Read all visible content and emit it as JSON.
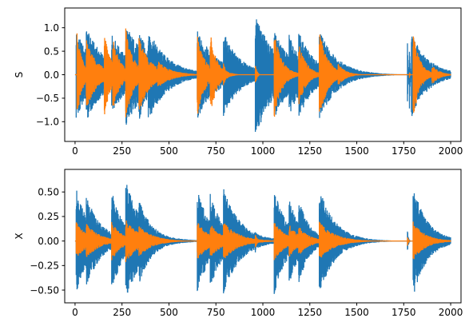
{
  "chart_data": [
    {
      "type": "line",
      "ylabel": "S",
      "xlabel": "",
      "title": "",
      "xlim": [
        -55,
        2055
      ],
      "ylim": [
        -1.42,
        1.42
      ],
      "xticks": [
        0,
        250,
        500,
        750,
        1000,
        1250,
        1500,
        1750,
        2000
      ],
      "yticks": [
        -1.0,
        -0.5,
        0.0,
        0.5,
        1.0
      ],
      "ytick_labels": [
        "−1.0",
        "−0.5",
        "0.0",
        "0.5",
        "1.0"
      ],
      "grid": false,
      "series": [
        {
          "color": "#1f77b4",
          "envelope_events": [
            {
              "start": 5,
              "amplitude": 0.95,
              "decay": 95
            },
            {
              "start": 60,
              "amplitude": 1.0,
              "decay": 110
            },
            {
              "start": 195,
              "amplitude": 0.9,
              "decay": 95
            },
            {
              "start": 270,
              "amplitude": 1.1,
              "decay": 120
            },
            {
              "start": 340,
              "amplitude": 1.0,
              "decay": 70
            },
            {
              "start": 390,
              "amplitude": 0.98,
              "decay": 105
            },
            {
              "start": 650,
              "amplitude": 0.95,
              "decay": 110
            },
            {
              "start": 790,
              "amplitude": 0.92,
              "decay": 90
            },
            {
              "start": 960,
              "amplitude": 1.35,
              "decay": 105
            },
            {
              "start": 1060,
              "amplitude": 0.95,
              "decay": 95
            },
            {
              "start": 1140,
              "amplitude": 0.88,
              "decay": 80
            },
            {
              "start": 1190,
              "amplitude": 0.95,
              "decay": 85
            },
            {
              "start": 1300,
              "amplitude": 0.98,
              "decay": 95
            },
            {
              "start": 1770,
              "amplitude": 0.92,
              "decay": 3
            },
            {
              "start": 1780,
              "amplitude": 0.92,
              "decay": 3
            },
            {
              "start": 1790,
              "amplitude": 0.92,
              "decay": 90
            }
          ]
        },
        {
          "color": "#ff7f0e",
          "envelope_events": [
            {
              "start": 10,
              "amplitude": 0.95,
              "decay": 28
            },
            {
              "start": 60,
              "amplitude": 0.75,
              "decay": 60
            },
            {
              "start": 155,
              "amplitude": 0.95,
              "decay": 35
            },
            {
              "start": 200,
              "amplitude": 0.82,
              "decay": 40
            },
            {
              "start": 270,
              "amplitude": 1.02,
              "decay": 40
            },
            {
              "start": 340,
              "amplitude": 0.82,
              "decay": 60
            },
            {
              "start": 440,
              "amplitude": 0.3,
              "decay": 70
            },
            {
              "start": 650,
              "amplitude": 0.95,
              "decay": 40
            },
            {
              "start": 720,
              "amplitude": 0.92,
              "decay": 35
            },
            {
              "start": 790,
              "amplitude": 0.25,
              "decay": 18
            },
            {
              "start": 960,
              "amplitude": 0.25,
              "decay": 8
            },
            {
              "start": 1060,
              "amplitude": 0.95,
              "decay": 40
            },
            {
              "start": 1190,
              "amplitude": 0.72,
              "decay": 40
            },
            {
              "start": 1300,
              "amplitude": 0.98,
              "decay": 45
            },
            {
              "start": 1400,
              "amplitude": 0.25,
              "decay": 40
            },
            {
              "start": 1780,
              "amplitude": 0.08,
              "decay": 3
            },
            {
              "start": 1800,
              "amplitude": 0.95,
              "decay": 35
            },
            {
              "start": 1900,
              "amplitude": 0.22,
              "decay": 40
            }
          ]
        }
      ]
    },
    {
      "type": "line",
      "ylabel": "X",
      "xlabel": "",
      "title": "",
      "xlim": [
        -55,
        2055
      ],
      "ylim": [
        -0.63,
        0.73
      ],
      "xticks": [
        0,
        250,
        500,
        750,
        1000,
        1250,
        1500,
        1750,
        2000
      ],
      "yticks": [
        -0.5,
        -0.25,
        0.0,
        0.25,
        0.5
      ],
      "ytick_labels": [
        "−0.50",
        "−0.25",
        "0.00",
        "0.25",
        "0.50"
      ],
      "grid": false,
      "series": [
        {
          "color": "#1f77b4",
          "envelope_events": [
            {
              "start": 5,
              "amplitude": 0.55,
              "decay": 70
            },
            {
              "start": 60,
              "amplitude": 0.48,
              "decay": 80
            },
            {
              "start": 195,
              "amplitude": 0.55,
              "decay": 60
            },
            {
              "start": 270,
              "amplitude": 0.62,
              "decay": 90
            },
            {
              "start": 340,
              "amplitude": 0.45,
              "decay": 70
            },
            {
              "start": 650,
              "amplitude": 0.55,
              "decay": 70
            },
            {
              "start": 720,
              "amplitude": 0.5,
              "decay": 70
            },
            {
              "start": 790,
              "amplitude": 0.55,
              "decay": 90
            },
            {
              "start": 960,
              "amplitude": 0.12,
              "decay": 8
            },
            {
              "start": 1060,
              "amplitude": 0.55,
              "decay": 70
            },
            {
              "start": 1140,
              "amplitude": 0.45,
              "decay": 60
            },
            {
              "start": 1190,
              "amplitude": 0.44,
              "decay": 60
            },
            {
              "start": 1300,
              "amplitude": 0.55,
              "decay": 85
            },
            {
              "start": 1770,
              "amplitude": 0.12,
              "decay": 5
            },
            {
              "start": 1800,
              "amplitude": 0.57,
              "decay": 75
            }
          ]
        },
        {
          "color": "#ff7f0e",
          "envelope_events": [
            {
              "start": 5,
              "amplitude": 0.2,
              "decay": 60
            },
            {
              "start": 60,
              "amplitude": 0.18,
              "decay": 70
            },
            {
              "start": 195,
              "amplitude": 0.2,
              "decay": 55
            },
            {
              "start": 270,
              "amplitude": 0.22,
              "decay": 75
            },
            {
              "start": 340,
              "amplitude": 0.16,
              "decay": 75
            },
            {
              "start": 650,
              "amplitude": 0.2,
              "decay": 65
            },
            {
              "start": 720,
              "amplitude": 0.18,
              "decay": 65
            },
            {
              "start": 790,
              "amplitude": 0.2,
              "decay": 80
            },
            {
              "start": 960,
              "amplitude": 0.08,
              "decay": 10
            },
            {
              "start": 1060,
              "amplitude": 0.2,
              "decay": 65
            },
            {
              "start": 1140,
              "amplitude": 0.17,
              "decay": 55
            },
            {
              "start": 1190,
              "amplitude": 0.16,
              "decay": 55
            },
            {
              "start": 1300,
              "amplitude": 0.2,
              "decay": 80
            },
            {
              "start": 1770,
              "amplitude": 0.06,
              "decay": 5
            },
            {
              "start": 1800,
              "amplitude": 0.2,
              "decay": 65
            }
          ]
        }
      ]
    }
  ]
}
